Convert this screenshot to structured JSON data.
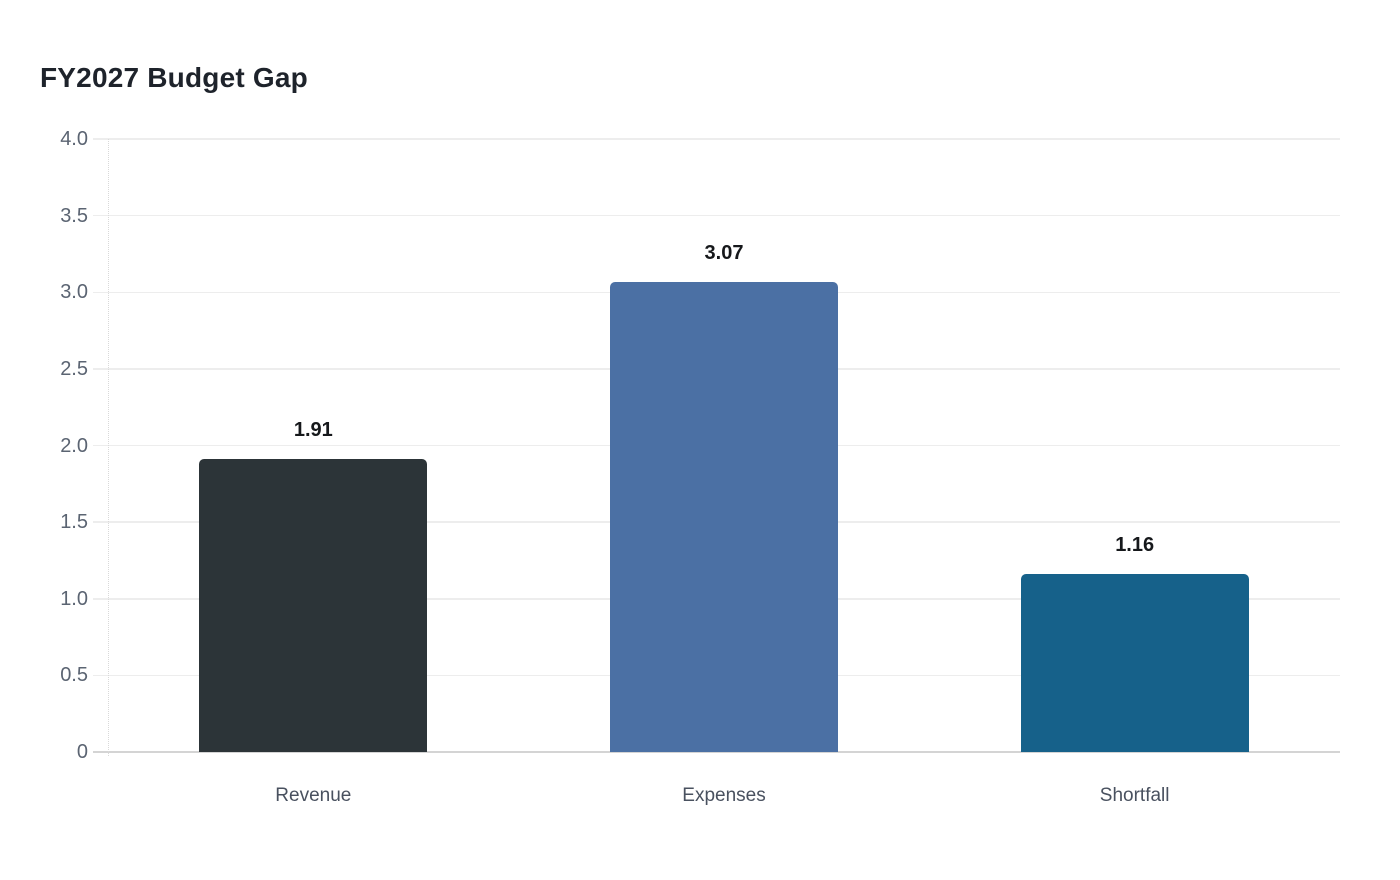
{
  "chart_data": {
    "type": "bar",
    "title": "FY2027 Budget Gap",
    "categories": [
      "Revenue",
      "Expenses",
      "Shortfall"
    ],
    "values": [
      1.91,
      3.07,
      1.16
    ],
    "value_labels": [
      "1.91",
      "3.07",
      "1.16"
    ],
    "bar_colors": [
      "#2c3438",
      "#4b70a4",
      "#16618a"
    ],
    "xlabel": "",
    "ylabel": "",
    "ylim": [
      0,
      4.0
    ],
    "yticks": [
      0,
      0.5,
      1.0,
      1.5,
      2.0,
      2.5,
      3.0,
      3.5,
      4.0
    ],
    "ytick_labels": [
      "0",
      "0.5",
      "1.0",
      "1.5",
      "2.0",
      "2.5",
      "3.0",
      "3.5",
      "4.0"
    ],
    "grid": "horizontal",
    "legend": "none",
    "colors": {
      "background": "#ffffff",
      "title": "#1e232b",
      "value_label": "#16181b",
      "tick_label": "#5b6472",
      "category_label": "#49515f",
      "gridline": "#ededed",
      "zero_line": "#d4d4d4",
      "axis_line": "#d9d9d9"
    }
  }
}
